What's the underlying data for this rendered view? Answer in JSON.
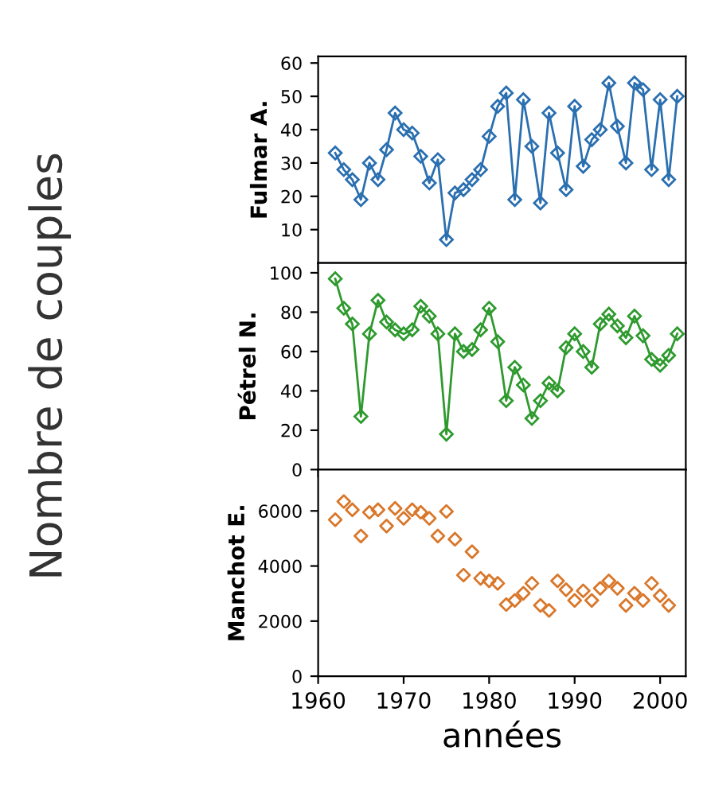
{
  "chart_data": [
    {
      "type": "line",
      "ylabel": "Fulmar A.",
      "xlim": [
        1960,
        2003
      ],
      "xticks": [
        1960,
        1970,
        1980,
        1990,
        2000
      ],
      "ylim": [
        0,
        62
      ],
      "yticks": [
        10,
        20,
        30,
        40,
        50,
        60
      ],
      "tick_labels": "y",
      "marker": "diamond",
      "line_style": "solid",
      "grid": false,
      "series": [
        {
          "color": "#2a6fb0",
          "x": [
            1962,
            1963,
            1964,
            1965,
            1966,
            1967,
            1968,
            1969,
            1970,
            1971,
            1972,
            1973,
            1974,
            1975,
            1976,
            1977,
            1978,
            1979,
            1980,
            1981,
            1982,
            1983,
            1984,
            1985,
            1986,
            1987,
            1988,
            1989,
            1990,
            1991,
            1992,
            1993,
            1994,
            1995,
            1996,
            1997,
            1998,
            1999,
            2000,
            2001,
            2002
          ],
          "values": [
            33,
            28,
            25,
            19,
            30,
            25,
            34,
            45,
            40,
            39,
            32,
            24,
            31,
            7,
            21,
            22,
            25,
            28,
            38,
            47,
            51,
            19,
            49,
            35,
            18,
            45,
            33,
            22,
            47,
            29,
            37,
            40,
            54,
            41,
            30,
            54,
            52,
            28,
            49,
            25,
            50
          ]
        }
      ]
    },
    {
      "type": "line",
      "ylabel": "Pétrel N.",
      "xlim": [
        1960,
        2003
      ],
      "xticks": [
        1960,
        1970,
        1980,
        1990,
        2000
      ],
      "ylim": [
        0,
        105
      ],
      "yticks": [
        0,
        20,
        40,
        60,
        80,
        100
      ],
      "tick_labels": "y",
      "marker": "diamond",
      "line_style": "solid",
      "grid": false,
      "series": [
        {
          "color": "#2e9a2e",
          "x": [
            1962,
            1963,
            1964,
            1965,
            1966,
            1967,
            1968,
            1969,
            1970,
            1971,
            1972,
            1973,
            1974,
            1975,
            1976,
            1977,
            1978,
            1979,
            1980,
            1981,
            1982,
            1983,
            1984,
            1985,
            1986,
            1987,
            1988,
            1989,
            1990,
            1991,
            1992,
            1993,
            1994,
            1995,
            1996,
            1997,
            1998,
            1999,
            2000,
            2001,
            2002
          ],
          "values": [
            97,
            82,
            74,
            27,
            69,
            86,
            75,
            71,
            69,
            71,
            83,
            78,
            69,
            18,
            69,
            60,
            61,
            71,
            82,
            65,
            35,
            52,
            43,
            26,
            35,
            44,
            40,
            62,
            69,
            60,
            52,
            74,
            79,
            73,
            67,
            78,
            68,
            56,
            53,
            58,
            69
          ]
        }
      ]
    },
    {
      "type": "scatter",
      "ylabel": "Manchot E.",
      "xlabel": "années",
      "annotations": [
        "Nombre de couples"
      ],
      "xlim": [
        1960,
        2003
      ],
      "xticks": [
        1960,
        1970,
        1980,
        1990,
        2000
      ],
      "ylim": [
        0,
        7500
      ],
      "yticks": [
        0,
        2000,
        4000,
        6000
      ],
      "marker": "diamond",
      "grid": false,
      "series": [
        {
          "color": "#d9772a",
          "x": [
            1962,
            1963,
            1964,
            1965,
            1966,
            1967,
            1968,
            1969,
            1970,
            1971,
            1972,
            1973,
            1974,
            1975,
            1976,
            1977,
            1978,
            1979,
            1980,
            1981,
            1982,
            1983,
            1984,
            1985,
            1986,
            1987,
            1988,
            1989,
            1990,
            1991,
            1992,
            1993,
            1994,
            1995,
            1996,
            1997,
            1998,
            1999,
            2000,
            2001
          ],
          "values": [
            5680,
            6340,
            6040,
            5090,
            5950,
            6040,
            5450,
            6090,
            5730,
            6040,
            5950,
            5730,
            5090,
            5980,
            4970,
            3670,
            4520,
            3550,
            3460,
            3370,
            2600,
            2750,
            3010,
            3370,
            2570,
            2390,
            3460,
            3140,
            2750,
            3100,
            2750,
            3190,
            3460,
            3190,
            2570,
            3010,
            2750,
            3370,
            2920,
            2570
          ]
        }
      ]
    }
  ]
}
